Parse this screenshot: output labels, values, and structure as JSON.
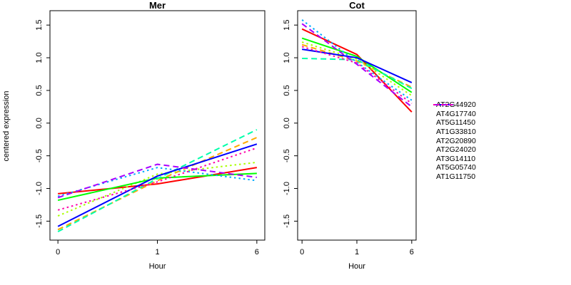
{
  "figure": {
    "background": "#ffffff",
    "text_color": "#000000"
  },
  "chart_data": {
    "type": "line",
    "x_categories": [
      "0",
      "1",
      "6"
    ],
    "xlabel": "Hour",
    "ylabel": "centered expression",
    "y_tick_labels": [
      "1.5",
      "1.0",
      "0.5",
      "0.0",
      "-0.5",
      "-1.0",
      "-1.5"
    ],
    "ylim": [
      -1.79,
      1.72
    ],
    "grid": false,
    "legend_position": "right",
    "panels": [
      {
        "title": "Mer",
        "series": [
          {
            "name": "AT2G44920",
            "color": "#FF0000",
            "linetype": "solid",
            "values": [
              -1.08,
              -0.93,
              -0.68
            ]
          },
          {
            "name": "AT4G17740",
            "color": "#FFAA00",
            "linetype": "dashed",
            "values": [
              -1.63,
              -0.88,
              -0.22
            ]
          },
          {
            "name": "AT5G11450",
            "color": "#AAFF00",
            "linetype": "dotted",
            "values": [
              -1.42,
              -0.78,
              -0.6
            ]
          },
          {
            "name": "AT1G33810",
            "color": "#00FF00",
            "linetype": "solid",
            "values": [
              -1.18,
              -0.84,
              -0.77
            ]
          },
          {
            "name": "AT2G20890",
            "color": "#00FFAA",
            "linetype": "dashed",
            "values": [
              -1.66,
              -0.85,
              -0.1
            ]
          },
          {
            "name": "AT2G24020",
            "color": "#00AAFF",
            "linetype": "dotted",
            "values": [
              -1.12,
              -0.68,
              -0.88
            ]
          },
          {
            "name": "AT3G14110",
            "color": "#0000FF",
            "linetype": "solid",
            "values": [
              -1.58,
              -0.81,
              -0.32
            ]
          },
          {
            "name": "AT5G05740",
            "color": "#AA00FF",
            "linetype": "dashed",
            "values": [
              -1.14,
              -0.63,
              -0.83
            ]
          },
          {
            "name": "AT1G11750",
            "color": "#FF00AA",
            "linetype": "dotted",
            "values": [
              -1.33,
              -0.9,
              -0.38
            ]
          }
        ]
      },
      {
        "title": "Cot",
        "series": [
          {
            "name": "AT2G44920",
            "color": "#FF0000",
            "linetype": "solid",
            "values": [
              1.44,
              1.05,
              0.17
            ]
          },
          {
            "name": "AT4G17740",
            "color": "#FFAA00",
            "linetype": "dashed",
            "values": [
              1.2,
              0.95,
              0.55
            ]
          },
          {
            "name": "AT5G11450",
            "color": "#AAFF00",
            "linetype": "dotted",
            "values": [
              1.24,
              0.98,
              0.42
            ]
          },
          {
            "name": "AT1G33810",
            "color": "#00FF00",
            "linetype": "solid",
            "values": [
              1.3,
              1.02,
              0.47
            ]
          },
          {
            "name": "AT2G20890",
            "color": "#00FFAA",
            "linetype": "dashed",
            "values": [
              0.99,
              0.97,
              0.53
            ]
          },
          {
            "name": "AT2G24020",
            "color": "#00AAFF",
            "linetype": "dotted",
            "values": [
              1.58,
              0.93,
              0.35
            ]
          },
          {
            "name": "AT3G14110",
            "color": "#0000FF",
            "linetype": "solid",
            "values": [
              1.13,
              1.0,
              0.62
            ]
          },
          {
            "name": "AT5G05740",
            "color": "#AA00FF",
            "linetype": "dashed",
            "values": [
              1.52,
              0.9,
              0.25
            ]
          },
          {
            "name": "AT1G11750",
            "color": "#FF00AA",
            "linetype": "dotted",
            "values": [
              1.17,
              0.92,
              0.3
            ]
          }
        ]
      }
    ]
  }
}
